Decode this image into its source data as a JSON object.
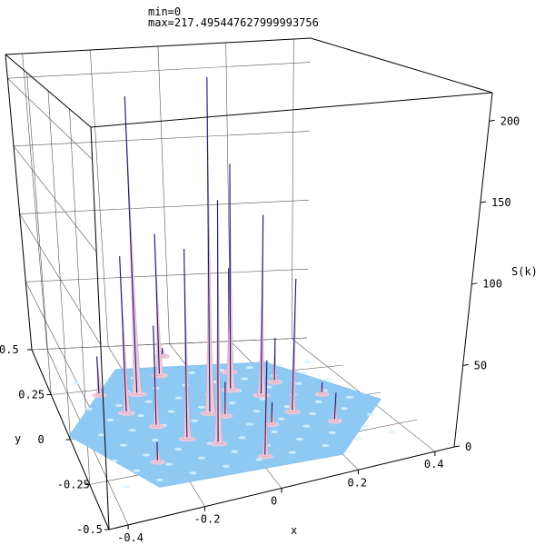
{
  "header": {
    "min_label": "min=0",
    "max_label": "max=217.495447627999993756"
  },
  "chart_data": {
    "type": "surface3d",
    "x": {
      "label": "x",
      "ticks": [
        "-0.4",
        "-0.2",
        "0",
        "0.2",
        "0.4"
      ],
      "range": [
        -0.45,
        0.45
      ]
    },
    "y": {
      "label": "y",
      "ticks": [
        "-0.5",
        "-0.25",
        "0",
        "0.25",
        "0.5"
      ],
      "range": [
        -0.5,
        0.5
      ]
    },
    "z": {
      "label": "S(k)",
      "ticks": [
        "0",
        "50",
        "100",
        "150",
        "200"
      ],
      "range": [
        0,
        217.5
      ]
    },
    "grid": true,
    "colors": {
      "base": "#8ec9f4",
      "peak_light": "#f0c8d8",
      "peak_dark": "#1a1a78",
      "box": "#000000",
      "grid": "#555555"
    },
    "peaks": [
      {
        "x": -0.035,
        "y": 0.03,
        "value": 217.5
      },
      {
        "x": -0.2,
        "y": 0.2,
        "value": 200.0
      },
      {
        "x": 0.07,
        "y": 0.16,
        "value": 152.0
      },
      {
        "x": -0.07,
        "y": -0.16,
        "value": 150.0
      },
      {
        "x": 0.14,
        "y": 0.1,
        "value": 120.0
      },
      {
        "x": -0.14,
        "y": -0.1,
        "value": 118.0
      },
      {
        "x": -0.26,
        "y": 0.1,
        "value": 102.0
      },
      {
        "x": -0.1,
        "y": 0.3,
        "value": 98.0
      },
      {
        "x": 0.18,
        "y": -0.04,
        "value": 86.0
      },
      {
        "x": 0.11,
        "y": 0.28,
        "value": 72.0
      },
      {
        "x": -0.2,
        "y": 0.0,
        "value": 64.0
      },
      {
        "x": 0.02,
        "y": -0.29,
        "value": 58.0
      },
      {
        "x": 0.21,
        "y": 0.18,
        "value": 30.0
      },
      {
        "x": -0.31,
        "y": 0.22,
        "value": 26.0
      },
      {
        "x": 0.26,
        "y": -0.15,
        "value": 18.0
      },
      {
        "x": -0.25,
        "y": -0.2,
        "value": 12.0
      },
      {
        "x": 0.0,
        "y": 0.0,
        "value": 22.0
      },
      {
        "x": 0.3,
        "y": 0.05,
        "value": 8.0
      },
      {
        "x": -0.05,
        "y": 0.42,
        "value": 6.0
      },
      {
        "x": 0.1,
        "y": -0.1,
        "value": 14.0
      }
    ]
  }
}
